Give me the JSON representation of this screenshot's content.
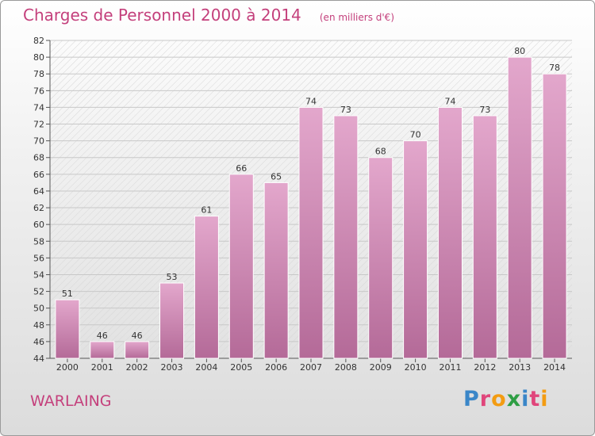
{
  "chart_data": {
    "type": "bar",
    "title": "Charges de Personnel 2000 à 2014",
    "subtitle": "(en milliers d'€)",
    "categories": [
      "2000",
      "2001",
      "2002",
      "2003",
      "2004",
      "2005",
      "2006",
      "2007",
      "2008",
      "2009",
      "2010",
      "2011",
      "2012",
      "2013",
      "2014"
    ],
    "values": [
      51,
      46,
      46,
      53,
      61,
      66,
      65,
      74,
      73,
      68,
      70,
      74,
      73,
      80,
      78
    ],
    "ylim": [
      44,
      82
    ],
    "ytick_step": 2,
    "xlabel": "",
    "ylabel": "",
    "grid": true,
    "bar_color": "#d98bb8"
  },
  "commune": "WARLAING",
  "logo": {
    "letters": [
      "P",
      "r",
      "o",
      "x",
      "i",
      "t",
      "i"
    ],
    "colors": [
      "#3a86c8",
      "#e0457b",
      "#f39c12",
      "#2e9e44",
      "#3a86c8",
      "#e0457b",
      "#f39c12"
    ]
  }
}
